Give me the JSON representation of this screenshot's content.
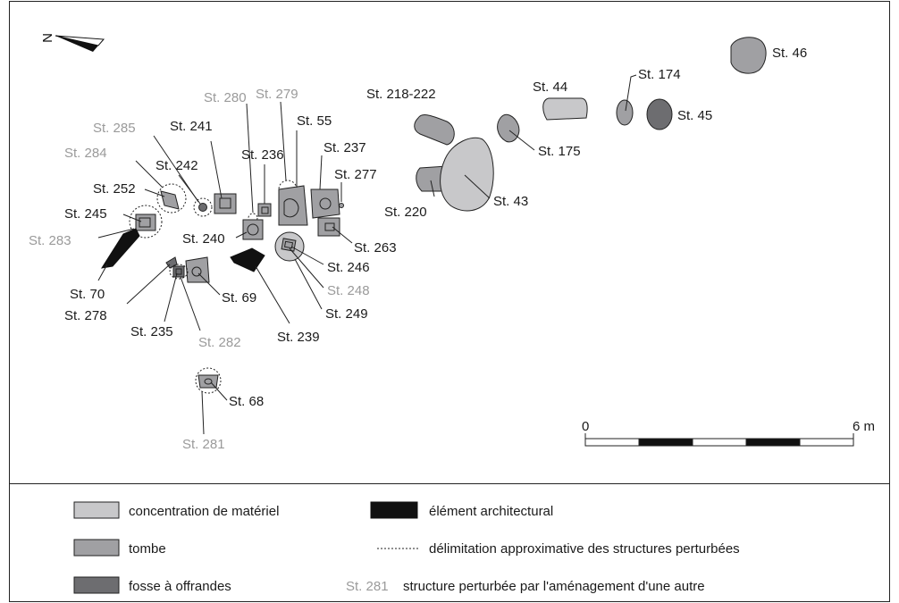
{
  "north": {
    "letter": "N"
  },
  "colors": {
    "materiel": "#c8c8ca",
    "tombe": "#a0a0a3",
    "fosse": "#6d6d70",
    "architectural": "#111111",
    "label_normal": "#1a1a1a",
    "label_perturbee": "#9a9a9a",
    "outline": "#222222"
  },
  "labels": [
    {
      "id": "st46",
      "text": "St. 46",
      "type": "normal"
    },
    {
      "id": "st174",
      "text": "St. 174",
      "type": "normal"
    },
    {
      "id": "st44",
      "text": "St. 44",
      "type": "normal"
    },
    {
      "id": "st45",
      "text": "St. 45",
      "type": "normal"
    },
    {
      "id": "st218",
      "text": "St. 218-222",
      "type": "normal"
    },
    {
      "id": "st175",
      "text": "St. 175",
      "type": "normal"
    },
    {
      "id": "st43",
      "text": "St. 43",
      "type": "normal"
    },
    {
      "id": "st220",
      "text": "St. 220",
      "type": "normal"
    },
    {
      "id": "st280",
      "text": "St. 280",
      "type": "perturbee"
    },
    {
      "id": "st279",
      "text": "St. 279",
      "type": "perturbee"
    },
    {
      "id": "st55",
      "text": "St. 55",
      "type": "normal"
    },
    {
      "id": "st241",
      "text": "St. 241",
      "type": "normal"
    },
    {
      "id": "st285",
      "text": "St. 285",
      "type": "perturbee"
    },
    {
      "id": "st236",
      "text": "St. 236",
      "type": "normal"
    },
    {
      "id": "st237",
      "text": "St. 237",
      "type": "normal"
    },
    {
      "id": "st284",
      "text": "St. 284",
      "type": "perturbee"
    },
    {
      "id": "st242",
      "text": "St. 242",
      "type": "normal"
    },
    {
      "id": "st277",
      "text": "St. 277",
      "type": "normal"
    },
    {
      "id": "st252",
      "text": "St. 252",
      "type": "normal"
    },
    {
      "id": "st245",
      "text": "St. 245",
      "type": "normal"
    },
    {
      "id": "st283",
      "text": "St. 283",
      "type": "perturbee"
    },
    {
      "id": "st240",
      "text": "St. 240",
      "type": "normal"
    },
    {
      "id": "st263",
      "text": "St. 263",
      "type": "normal"
    },
    {
      "id": "st246",
      "text": "St. 246",
      "type": "normal"
    },
    {
      "id": "st248",
      "text": "St. 248",
      "type": "perturbee"
    },
    {
      "id": "st70",
      "text": "St. 70",
      "type": "normal"
    },
    {
      "id": "st278",
      "text": "St. 278",
      "type": "normal"
    },
    {
      "id": "st69",
      "text": "St. 69",
      "type": "normal"
    },
    {
      "id": "st249",
      "text": "St. 249",
      "type": "normal"
    },
    {
      "id": "st235",
      "text": "St. 235",
      "type": "normal"
    },
    {
      "id": "st282",
      "text": "St. 282",
      "type": "perturbee"
    },
    {
      "id": "st239",
      "text": "St. 239",
      "type": "normal"
    },
    {
      "id": "st68",
      "text": "St. 68",
      "type": "normal"
    },
    {
      "id": "st281",
      "text": "St. 281",
      "type": "perturbee"
    }
  ],
  "scale": {
    "start_label": "0",
    "end_label": "6 m"
  },
  "legend": {
    "materiel": "concentration de matériel",
    "tombe": "tombe",
    "fosse": "fosse à offrandes",
    "architectural": "élément architectural",
    "delimitation": "délimitation approximative des structures perturbées",
    "perturbee_example": "St. 281",
    "perturbee_text": "structure perturbée par l'aménagement d'une autre"
  }
}
